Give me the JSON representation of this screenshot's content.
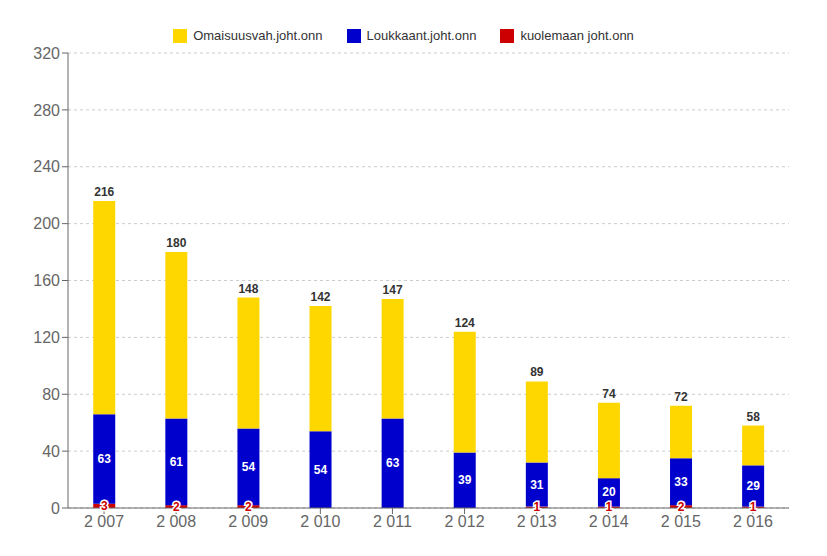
{
  "chart_data": {
    "type": "bar",
    "stacked": true,
    "grid": true,
    "legend": "top",
    "categories": [
      "2 007",
      "2 008",
      "2 009",
      "2 010",
      "2 011",
      "2 012",
      "2 013",
      "2 014",
      "2 015",
      "2 016"
    ],
    "series": [
      {
        "name": "Omaisuusvah.joht.onn",
        "color": "#FFD700",
        "values": [
          150,
          117,
          92,
          88,
          84,
          85,
          57,
          53,
          37,
          28
        ],
        "data_labels": false
      },
      {
        "name": "Loukkaant.joht.onn",
        "color": "#0000CC",
        "values": [
          63,
          61,
          54,
          54,
          63,
          39,
          31,
          20,
          33,
          29
        ],
        "data_labels": true
      },
      {
        "name": "kuolemaan joht.onn",
        "color": "#CC0000",
        "values": [
          3,
          2,
          2,
          0,
          0,
          0,
          1,
          1,
          2,
          1
        ],
        "data_labels": true
      }
    ],
    "totals": [
      216,
      180,
      148,
      142,
      147,
      124,
      89,
      74,
      72,
      58
    ],
    "ylim": [
      0,
      320
    ],
    "yticks": [
      0,
      40,
      80,
      120,
      160,
      200,
      240,
      280,
      320
    ]
  }
}
